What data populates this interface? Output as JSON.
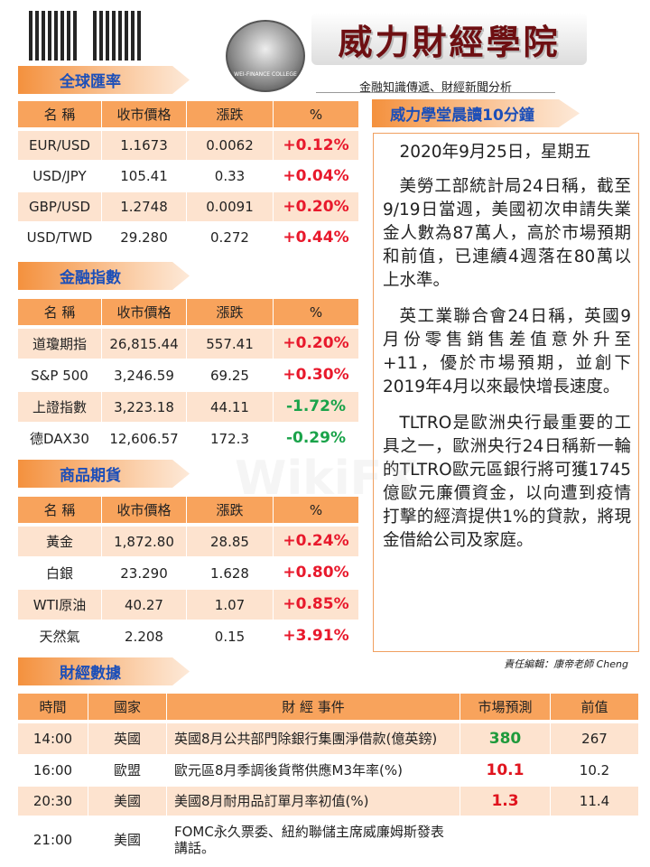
{
  "header": {
    "title": "威力財經學院",
    "subtitle": "金融知識傳遞、財經新聞分析",
    "logo_text": "WEI-FINANCE COLLEGE"
  },
  "watermark": "WikiFX",
  "fx": {
    "title": "全球匯率",
    "columns": [
      "名 稱",
      "收市價格",
      "漲跌",
      "%"
    ],
    "rows": [
      [
        "EUR/USD",
        "1.1673",
        "0.0062",
        "+0.12%"
      ],
      [
        "USD/JPY",
        "105.41",
        "0.33",
        "+0.04%"
      ],
      [
        "GBP/USD",
        "1.2748",
        "0.0091",
        "+0.20%"
      ],
      [
        "USD/TWD",
        "29.280",
        "0.272",
        "+0.44%"
      ]
    ]
  },
  "indices": {
    "title": "金融指數",
    "columns": [
      "名 稱",
      "收市價格",
      "漲跌",
      "%"
    ],
    "rows": [
      [
        "道瓊期指",
        "26,815.44",
        "557.41",
        "+0.20%"
      ],
      [
        "S&P 500",
        "3,246.59",
        "69.25",
        "+0.30%"
      ],
      [
        "上證指數",
        "3,223.18",
        "44.11",
        "-1.72%"
      ],
      [
        "德DAX30",
        "12,606.57",
        "172.3",
        "-0.29%"
      ]
    ]
  },
  "commodities": {
    "title": "商品期貨",
    "columns": [
      "名 稱",
      "收市價格",
      "漲跌",
      "%"
    ],
    "rows": [
      [
        "黃金",
        "1,872.80",
        "28.85",
        "+0.24%"
      ],
      [
        "白銀",
        "23.290",
        "1.628",
        "+0.80%"
      ],
      [
        "WTI原油",
        "40.27",
        "1.07",
        "+0.85%"
      ],
      [
        "天然氣",
        "2.208",
        "0.15",
        "+3.91%"
      ]
    ]
  },
  "calendar": {
    "title": "財經數據",
    "columns": [
      "時間",
      "國家",
      "財 經 事件",
      "市場預測",
      "前值"
    ],
    "rows": [
      [
        "14:00",
        "英國",
        "英國8月公共部門除銀行集團淨借款(億英鎊)",
        "380",
        "267"
      ],
      [
        "16:00",
        "歐盟",
        "歐元區8月季調後貨幣供應M3年率(%)",
        "10.1",
        "10.2"
      ],
      [
        "20:30",
        "美國",
        "美國8月耐用品訂單月率初值(%)",
        "1.3",
        "11.4"
      ],
      [
        "21:00",
        "美國",
        "FOMC永久票委、紐約聯儲主席威廉姆斯發表講話。",
        null,
        null
      ]
    ],
    "forecast_colors": [
      "#1f9a3c",
      "#e0141e",
      "#e0141e",
      null
    ]
  },
  "news": {
    "title": "威力學堂晨讀10分鐘",
    "date": "2020年9月25日，星期五",
    "paragraphs": [
      "美勞工部統計局24日稱，截至9/19日當週，美國初次申請失業金人數為87萬人，高於市場預期和前值，已連續4週落在80萬以上水準。",
      "英工業聯合會24日稱，英國9月份零售銷售差值意外升至+11，優於市場預期，並創下2019年4月以來最快增長速度。",
      "TLTRO是歐洲央行最重要的工具之一，歐洲央行24日稱新一輪的TLTRO歐元區銀行將可獲1745億歐元廉價資金，以向遭到疫情打擊的經濟提供1%的貸款，將現金借給公司及家庭。"
    ],
    "editor": "責任編輯：康帝老師 Cheng"
  },
  "colors": {
    "positive": "#e8192c",
    "negative": "#1aa34a"
  }
}
